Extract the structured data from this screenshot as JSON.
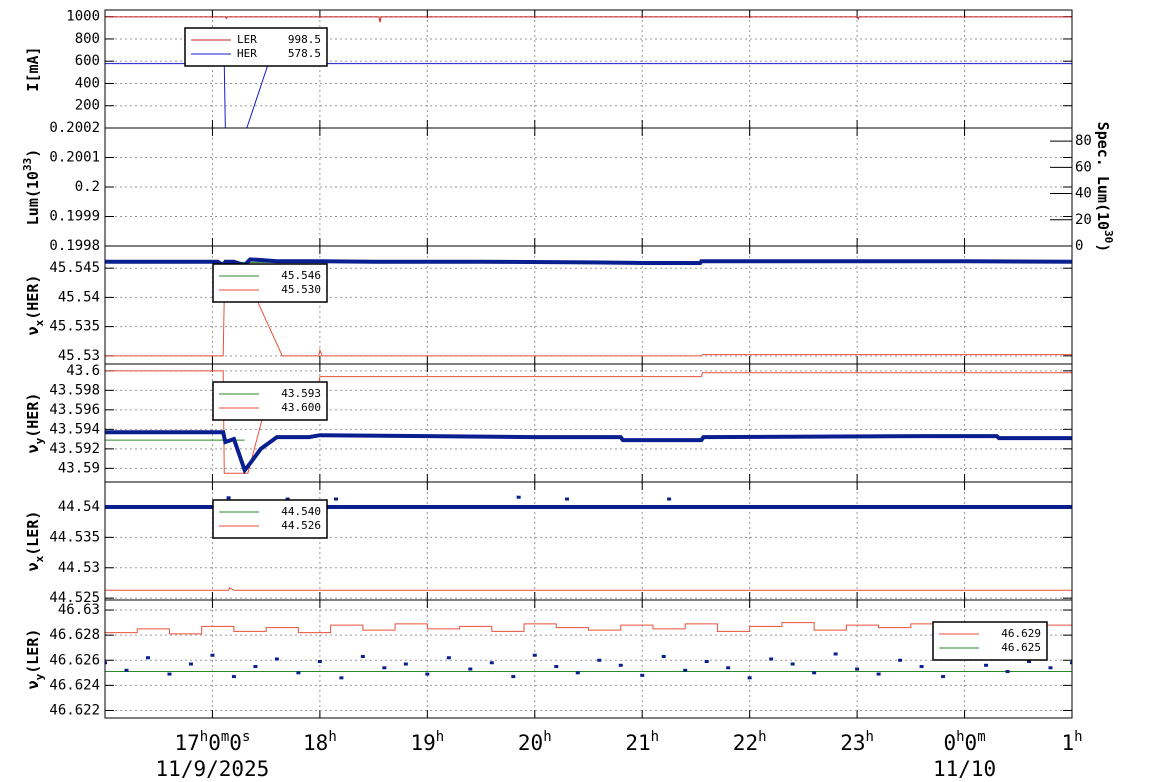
{
  "chart_data": [
    {
      "type": "line",
      "ylabel": [
        {
          "text": "I[mA]",
          "pos": "base"
        }
      ],
      "ylim": [
        0,
        1060
      ],
      "yticks": [
        200,
        400,
        600,
        800,
        1000
      ],
      "grid": true,
      "legend": "upper left",
      "series": [
        {
          "name": "LER",
          "color": "#d42020",
          "legend": "998.5",
          "x": [
            16,
            17.12,
            17.13,
            17.14,
            18.55,
            18.56,
            18.57,
            23.0,
            23.01,
            23.02,
            25
          ],
          "values": [
            998.5,
            998.5,
            985,
            998.5,
            998.5,
            950,
            998.5,
            998.5,
            980,
            998.5,
            998.5
          ]
        },
        {
          "name": "HER",
          "color": "#1a1acc",
          "legend": "578.5",
          "x": [
            16,
            17.11,
            17.12,
            17.32,
            17.52,
            25
          ],
          "values": [
            578.5,
            578.5,
            0,
            0,
            578.5,
            578.5
          ]
        }
      ]
    },
    {
      "type": "line",
      "ylabel": [
        {
          "text": "Lum(10",
          "pos": "base"
        },
        {
          "text": "33",
          "pos": "sup"
        },
        {
          "text": ")",
          "pos": "base"
        }
      ],
      "ylim": [
        0.1998,
        0.2002
      ],
      "yticks": [
        0.1998,
        0.1999,
        0.2,
        0.2001,
        0.2002
      ],
      "grid": true,
      "y2label": [
        {
          "text": "Spec. Lum(10",
          "pos": "base"
        },
        {
          "text": "30",
          "pos": "sup"
        },
        {
          "text": ")",
          "pos": "base"
        }
      ],
      "y2lim": [
        0,
        90
      ],
      "y2ticks": [
        0,
        20,
        40,
        60,
        80
      ],
      "series": []
    },
    {
      "type": "line",
      "ylabel": [
        {
          "text": "ν",
          "pos": "base"
        },
        {
          "text": "x",
          "pos": "sub"
        },
        {
          "text": "(HER)",
          "pos": "base"
        }
      ],
      "ylim": [
        45.5286,
        45.5488
      ],
      "yticks": [
        45.53,
        45.535,
        45.54,
        45.545
      ],
      "grid": true,
      "legend": "upper left",
      "series": [
        {
          "color": "#2a8a2a",
          "legend": "45.546",
          "x": [
            16,
            25
          ],
          "values": [
            45.546,
            45.546
          ]
        },
        {
          "color": "#e8503a",
          "legend": "45.530",
          "x": [
            16,
            17.1,
            17.11,
            17.4,
            17.65,
            17.99,
            18.0,
            18.02,
            21.55,
            21.56,
            25
          ],
          "values": [
            45.53,
            45.53,
            45.5401,
            45.5401,
            45.53,
            45.53,
            45.531,
            45.53,
            45.53,
            45.5302,
            45.5302
          ]
        },
        {
          "color": "#0a1f8f",
          "width": 4,
          "x": [
            16,
            17.05,
            17.1,
            17.12,
            17.2,
            17.3,
            17.35,
            17.45,
            17.6,
            18.0,
            18.5,
            19.5,
            20.5,
            21.0,
            21.54,
            21.55,
            22.5,
            24,
            25
          ],
          "values": [
            45.5461,
            45.5461,
            45.5455,
            45.5461,
            45.5461,
            45.5455,
            45.5465,
            45.5464,
            45.5462,
            45.5462,
            45.5461,
            45.5461,
            45.546,
            45.5459,
            45.5459,
            45.5462,
            45.5462,
            45.5462,
            45.5461
          ]
        }
      ]
    },
    {
      "type": "line",
      "ylabel": [
        {
          "text": "ν",
          "pos": "base"
        },
        {
          "text": "y",
          "pos": "sub"
        },
        {
          "text": "(HER)",
          "pos": "base"
        }
      ],
      "ylim": [
        43.5886,
        43.6007
      ],
      "yticks": [
        43.59,
        43.592,
        43.594,
        43.596,
        43.598,
        43.6
      ],
      "grid": true,
      "legend": "upper left",
      "series": [
        {
          "color": "#2a8a2a",
          "legend": "43.593",
          "x": [
            16,
            17.3
          ],
          "values": [
            43.5929,
            43.5929
          ]
        },
        {
          "color": "#e8503a",
          "legend": "43.600",
          "x": [
            16,
            17.1,
            17.11,
            17.33,
            17.55,
            17.99,
            18.0,
            21.55,
            21.56,
            25
          ],
          "values": [
            43.6,
            43.6,
            43.5895,
            43.5895,
            43.5987,
            43.5987,
            43.5994,
            43.5994,
            43.5998,
            43.5998
          ]
        },
        {
          "color": "#0a1f8f",
          "width": 4,
          "x": [
            16,
            17.1,
            17.12,
            17.2,
            17.3,
            17.35,
            17.45,
            17.6,
            17.9,
            18.0,
            19,
            20,
            20.8,
            20.82,
            21.55,
            21.57,
            23.6,
            24.3,
            24.32,
            25
          ],
          "values": [
            43.5937,
            43.5937,
            43.5927,
            43.593,
            43.5898,
            43.5905,
            43.592,
            43.5932,
            43.5932,
            43.5934,
            43.5933,
            43.5932,
            43.5932,
            43.5929,
            43.5929,
            43.5932,
            43.5933,
            43.5933,
            43.5931,
            43.5931
          ]
        }
      ]
    },
    {
      "type": "line",
      "ylabel": [
        {
          "text": "ν",
          "pos": "base"
        },
        {
          "text": "x",
          "pos": "sub"
        },
        {
          "text": "(LER)",
          "pos": "base"
        }
      ],
      "ylim": [
        44.5247,
        44.5441
      ],
      "yticks": [
        44.525,
        44.53,
        44.535,
        44.54
      ],
      "grid": true,
      "legend": "upper left",
      "series": [
        {
          "color": "#2a8a2a",
          "legend": "44.540",
          "x": [
            16,
            25
          ],
          "values": [
            44.54,
            44.54
          ]
        },
        {
          "color": "#e8503a",
          "legend": "44.526",
          "x": [
            16,
            17.15,
            17.16,
            17.2,
            25
          ],
          "values": [
            44.5263,
            44.5263,
            44.5267,
            44.5263,
            44.5263
          ]
        },
        {
          "color": "#0a1f8f",
          "width": 4,
          "x": [
            16,
            25
          ],
          "values": [
            44.54,
            44.54
          ]
        },
        {
          "color": "#0a1f8f",
          "markers": true,
          "x": [
            17.15,
            17.7,
            18.15,
            19.85,
            20.3,
            21.25
          ],
          "values": [
            44.5415,
            44.5413,
            44.5413,
            44.5416,
            44.5413,
            44.5413
          ]
        }
      ]
    },
    {
      "type": "line",
      "ylabel": [
        {
          "text": "ν",
          "pos": "base"
        },
        {
          "text": "y",
          "pos": "sub"
        },
        {
          "text": "(LER)",
          "pos": "base"
        }
      ],
      "ylim": [
        46.6214,
        46.6308
      ],
      "yticks": [
        46.622,
        46.624,
        46.626,
        46.628,
        46.63
      ],
      "grid": true,
      "legend": "lower right",
      "series": [
        {
          "color": "#e8503a",
          "legend": "46.629",
          "step": true,
          "x": [
            16.0,
            16.3,
            16.6,
            16.9,
            17.2,
            17.5,
            17.8,
            18.1,
            18.4,
            18.7,
            19.0,
            19.3,
            19.6,
            19.9,
            20.2,
            20.5,
            20.8,
            21.1,
            21.4,
            21.7,
            22.0,
            22.3,
            22.6,
            22.9,
            23.2,
            23.5,
            23.8,
            24.1,
            24.4,
            24.7,
            25.0
          ],
          "values": [
            46.6282,
            46.6285,
            46.6281,
            46.6287,
            46.6283,
            46.6286,
            46.6282,
            46.6288,
            46.6284,
            46.6289,
            46.6285,
            46.6287,
            46.6283,
            46.6289,
            46.6286,
            46.6284,
            46.6288,
            46.6285,
            46.6289,
            46.6283,
            46.6287,
            46.629,
            46.6284,
            46.6288,
            46.6286,
            46.6289,
            46.6283,
            46.6287,
            46.6285,
            46.6288,
            46.6284
          ]
        },
        {
          "color": "#2a8a2a",
          "legend": "46.625",
          "x": [
            16,
            25
          ],
          "values": [
            46.6251,
            46.6251
          ]
        },
        {
          "color": "#0a1f8f",
          "markers": true,
          "x": [
            16.0,
            16.2,
            16.4,
            16.6,
            16.8,
            17.0,
            17.2,
            17.4,
            17.6,
            17.8,
            18.0,
            18.2,
            18.4,
            18.6,
            18.8,
            19.0,
            19.2,
            19.4,
            19.6,
            19.8,
            20.0,
            20.2,
            20.4,
            20.6,
            20.8,
            21.0,
            21.2,
            21.4,
            21.6,
            21.8,
            22.0,
            22.2,
            22.4,
            22.6,
            22.8,
            23.0,
            23.2,
            23.4,
            23.6,
            23.8,
            24.0,
            24.2,
            24.4,
            24.6,
            24.8,
            25.0
          ],
          "values": [
            46.6258,
            46.6252,
            46.6262,
            46.6249,
            46.6257,
            46.6264,
            46.6247,
            46.6255,
            46.6261,
            46.625,
            46.6259,
            46.6246,
            46.6263,
            46.6254,
            46.6257,
            46.6249,
            46.6262,
            46.6253,
            46.6258,
            46.6247,
            46.6264,
            46.6255,
            46.625,
            46.626,
            46.6256,
            46.6248,
            46.6263,
            46.6252,
            46.6259,
            46.6254,
            46.6246,
            46.6261,
            46.6257,
            46.625,
            46.6265,
            46.6253,
            46.6249,
            46.626,
            46.6255,
            46.6247,
            46.6262,
            46.6256,
            46.6251,
            46.6259,
            46.6254,
            46.6258
          ]
        }
      ],
      "xlim": [
        16,
        25
      ],
      "xticks": [
        {
          "value": 17,
          "label": "17h0m0s"
        },
        {
          "value": 18,
          "label": "18h"
        },
        {
          "value": 19,
          "label": "19h"
        },
        {
          "value": 20,
          "label": "20h"
        },
        {
          "value": 21,
          "label": "21h"
        },
        {
          "value": 22,
          "label": "22h"
        },
        {
          "value": 23,
          "label": "23h"
        },
        {
          "value": 24,
          "label": "0h0m"
        },
        {
          "value": 25,
          "label": "1h"
        }
      ],
      "xdates": [
        {
          "value": 17,
          "label": "11/9/2025"
        },
        {
          "value": 24,
          "label": "11/10"
        }
      ]
    }
  ]
}
